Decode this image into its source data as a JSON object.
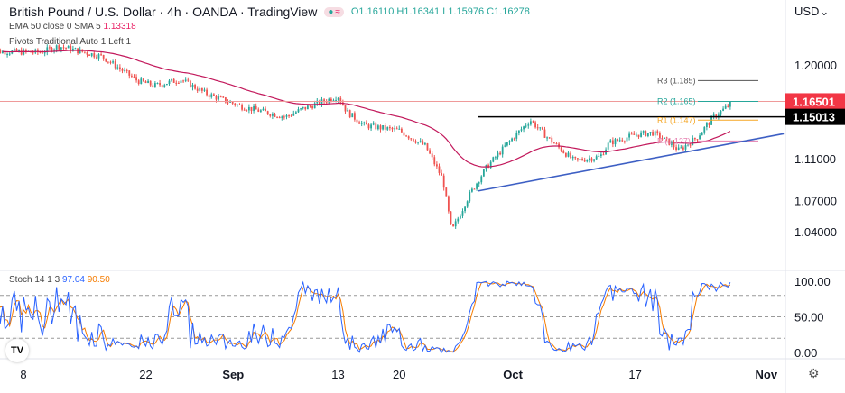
{
  "header": {
    "title": "British Pound / U.S. Dollar · 4h · OANDA · TradingView",
    "ohlc": "O1.16110 H1.16341 L1.15976 C1.16278",
    "ema_label": "EMA 50 close 0 SMA 5",
    "ema_value": "1.13318",
    "pivots_label": "Pivots Traditional Auto 1 Left 1",
    "stoch_label": "Stoch 14 1 3",
    "stoch_k": "97.04",
    "stoch_d": "90.50",
    "currency": "USD",
    "currency_icon": "chevron-down-icon",
    "logo": "TV"
  },
  "colors": {
    "up": "#26a69a",
    "down": "#ef5350",
    "ema": "#c2185b",
    "trend": "#3d5fc4",
    "k": "#2962ff",
    "d": "#f57c00",
    "r_line": "#ef9a9a"
  },
  "chart_data": [
    {
      "type": "candlestick",
      "ylim": [
        1.02,
        1.225
      ],
      "y_ticks": [
        "1.20000",
        "1.11000",
        "1.07000",
        "1.04000"
      ],
      "x_ticks": [
        [
          "2022-08-08",
          "8"
        ],
        [
          "2022-08-22",
          "22"
        ],
        [
          "2022-09-01",
          "Sep"
        ],
        [
          "2022-09-13",
          "13"
        ],
        [
          "2022-09-20",
          "20"
        ],
        [
          "2022-10-03",
          "Oct"
        ],
        [
          "2022-10-17",
          "17"
        ],
        [
          "2022-11-01",
          "Nov"
        ]
      ],
      "price_path": [
        [
          "2022-08-04",
          1.213
        ],
        [
          "2022-08-10",
          1.212
        ],
        [
          "2022-08-12",
          1.218
        ],
        [
          "2022-08-17",
          1.208
        ],
        [
          "2022-08-21",
          1.185
        ],
        [
          "2022-08-23",
          1.18
        ],
        [
          "2022-08-26",
          1.186
        ],
        [
          "2022-08-29",
          1.172
        ],
        [
          "2022-09-02",
          1.16
        ],
        [
          "2022-09-07",
          1.15
        ],
        [
          "2022-09-09",
          1.158
        ],
        [
          "2022-09-13",
          1.17
        ],
        [
          "2022-09-14",
          1.155
        ],
        [
          "2022-09-16",
          1.142
        ],
        [
          "2022-09-20",
          1.137
        ],
        [
          "2022-09-23",
          1.122
        ],
        [
          "2022-09-25",
          1.09
        ],
        [
          "2022-09-26",
          1.04
        ],
        [
          "2022-09-28",
          1.075
        ],
        [
          "2022-09-30",
          1.102
        ],
        [
          "2022-10-03",
          1.13
        ],
        [
          "2022-10-05",
          1.147
        ],
        [
          "2022-10-07",
          1.13
        ],
        [
          "2022-10-10",
          1.108
        ],
        [
          "2022-10-13",
          1.112
        ],
        [
          "2022-10-14",
          1.125
        ],
        [
          "2022-10-17",
          1.133
        ],
        [
          "2022-10-19",
          1.135
        ],
        [
          "2022-10-21",
          1.125
        ],
        [
          "2022-10-22",
          1.118
        ],
        [
          "2022-10-24",
          1.13
        ],
        [
          "2022-10-26",
          1.15
        ],
        [
          "2022-10-28",
          1.163
        ]
      ],
      "price_labels": [
        {
          "value": 1.16501,
          "text": "1.16501",
          "color": "#f23645"
        },
        {
          "value": 1.15013,
          "text": "1.15013",
          "color": "#000000"
        }
      ],
      "resistance_line": {
        "value": 1.15013,
        "from": "2022-09-29"
      },
      "current_line": 1.16501,
      "pivots": [
        {
          "name": "R3 (1.185)",
          "value": 1.185,
          "color": "#555555"
        },
        {
          "name": "R2 (1.165)",
          "value": 1.165,
          "color": "#26a69a"
        },
        {
          "name": "R1 (1.147)",
          "value": 1.147,
          "color": "#f5a623"
        },
        {
          "name": "P (1.127)",
          "value": 1.127,
          "color": "#e57fb0"
        }
      ],
      "trendline": [
        [
          "2022-09-29",
          1.079
        ],
        [
          "2022-11-03",
          1.134
        ]
      ]
    },
    {
      "type": "line",
      "title": "Stoch 14 1 3",
      "ylim": [
        0,
        100
      ],
      "y_ticks": [
        "100.00",
        "50.00",
        "0.00"
      ],
      "bands": [
        80,
        50,
        20
      ]
    }
  ]
}
